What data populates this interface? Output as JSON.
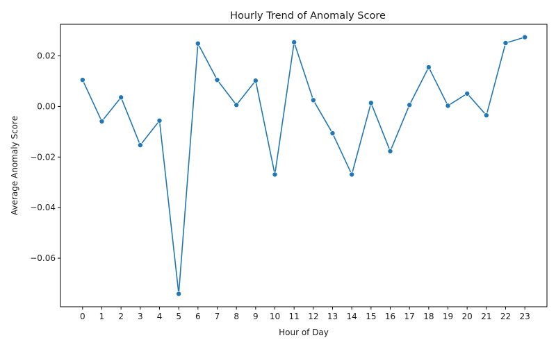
{
  "chart_data": {
    "type": "line",
    "title": "Hourly Trend of Anomaly Score",
    "xlabel": "Hour of Day",
    "ylabel": "Average Anomaly Score",
    "x": [
      0,
      1,
      2,
      3,
      4,
      5,
      6,
      7,
      8,
      9,
      10,
      11,
      12,
      13,
      14,
      15,
      16,
      17,
      18,
      19,
      20,
      21,
      22,
      23
    ],
    "x_tick_labels": [
      "0",
      "1",
      "2",
      "3",
      "4",
      "5",
      "6",
      "7",
      "8",
      "9",
      "10",
      "11",
      "12",
      "13",
      "14",
      "15",
      "16",
      "17",
      "18",
      "19",
      "20",
      "21",
      "22",
      "23"
    ],
    "series": [
      {
        "values": [
          0.0105,
          -0.0059,
          0.0036,
          -0.0153,
          -0.0056,
          -0.0741,
          0.0249,
          0.0105,
          0.0006,
          0.0102,
          -0.0269,
          0.0254,
          0.0025,
          -0.0106,
          -0.0269,
          0.0014,
          -0.0177,
          0.0006,
          0.0155,
          0.0003,
          0.0051,
          -0.0035,
          0.0251,
          0.0274
        ],
        "color": "#1f77b4"
      }
    ],
    "y_ticks": [
      -0.06,
      -0.04,
      -0.02,
      0.0,
      0.02
    ],
    "y_tick_labels": [
      "−0.06",
      "−0.04",
      "−0.02",
      "0.00",
      "0.02"
    ],
    "xlim": [
      -1.15,
      24.15
    ],
    "ylim": [
      -0.0792,
      0.0325
    ],
    "grid": false,
    "marker": "circle"
  }
}
